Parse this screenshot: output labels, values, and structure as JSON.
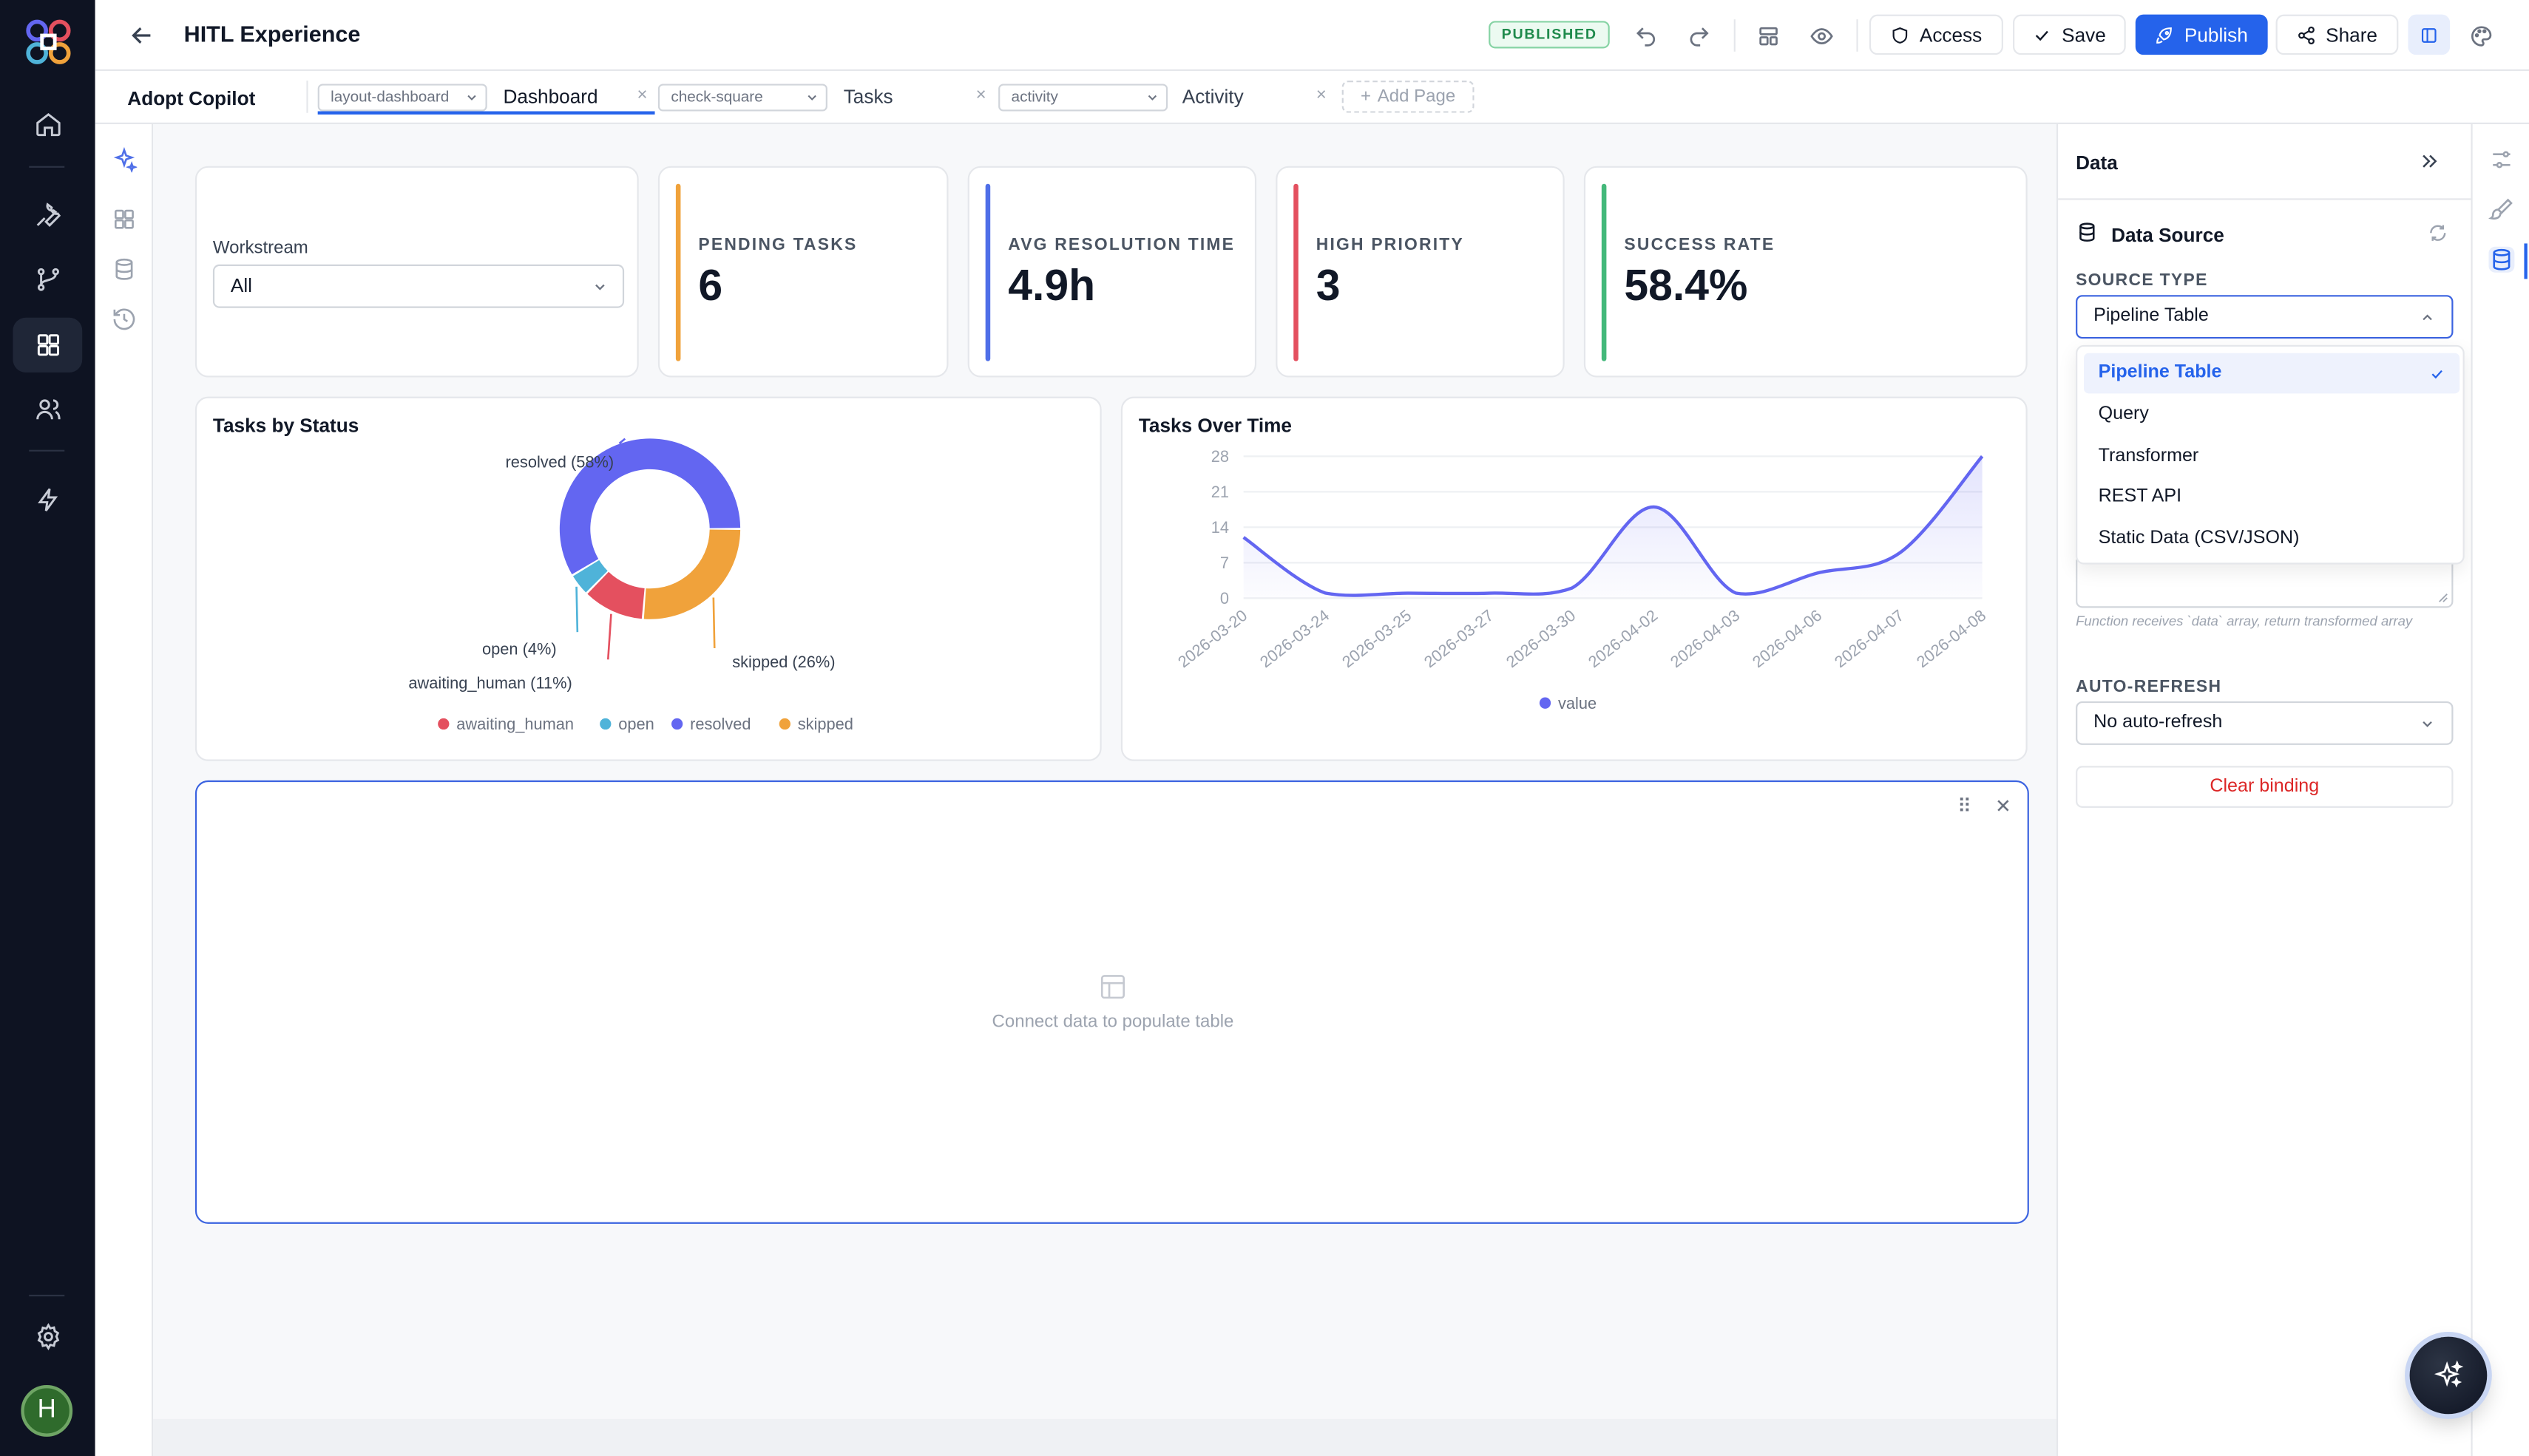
{
  "header": {
    "title": "HITL Experience",
    "status_badge": "PUBLISHED",
    "access_label": "Access",
    "save_label": "Save",
    "publish_label": "Publish",
    "share_label": "Share"
  },
  "tabstrip": {
    "app_name": "Adopt Copilot",
    "pages": [
      {
        "icon": "layout-dashboard",
        "name": "Dashboard"
      },
      {
        "icon": "check-square",
        "name": "Tasks"
      },
      {
        "icon": "activity",
        "name": "Activity"
      }
    ],
    "add_page_label": "Add Page",
    "close_glyph": "×"
  },
  "workstream": {
    "label": "Workstream",
    "value": "All"
  },
  "stats": [
    {
      "label": "PENDING TASKS",
      "value": "6",
      "color": "#f0a23b"
    },
    {
      "label": "AVG RESOLUTION TIME",
      "value": "4.9h",
      "color": "#4f6fe8"
    },
    {
      "label": "HIGH PRIORITY",
      "value": "3",
      "color": "#e4505f"
    },
    {
      "label": "SUCCESS RATE",
      "value": "58.4%",
      "color": "#43b87a"
    }
  ],
  "donut_card": {
    "title": "Tasks by Status"
  },
  "line_card": {
    "title": "Tasks Over Time"
  },
  "chart_data": [
    {
      "type": "pie",
      "title": "Tasks by Status",
      "donut": true,
      "slices": [
        {
          "name": "resolved",
          "value": 58,
          "label": "resolved (58%)",
          "color": "#6366f1"
        },
        {
          "name": "skipped",
          "value": 26,
          "label": "skipped (26%)",
          "color": "#f0a23b"
        },
        {
          "name": "awaiting_human",
          "value": 11,
          "label": "awaiting_human (11%)",
          "color": "#e4505f"
        },
        {
          "name": "open",
          "value": 4,
          "label": "open (4%)",
          "color": "#4fb3d9"
        }
      ],
      "legend": [
        "awaiting_human",
        "open",
        "resolved",
        "skipped"
      ],
      "legend_placement": "bottom"
    },
    {
      "type": "area",
      "title": "Tasks Over Time",
      "x": [
        "2026-03-20",
        "2026-03-24",
        "2026-03-25",
        "2026-03-27",
        "2026-03-30",
        "2026-04-02",
        "2026-04-03",
        "2026-04-06",
        "2026-04-07",
        "2026-04-08"
      ],
      "series": [
        {
          "name": "value",
          "values": [
            12,
            1,
            1,
            1,
            2,
            18,
            1,
            5,
            9,
            28
          ],
          "color": "#6366f1"
        }
      ],
      "yticks": [
        0,
        7,
        14,
        21,
        28
      ],
      "ylim": [
        0,
        28
      ],
      "grid": true,
      "legend_placement": "bottom"
    }
  ],
  "table_card": {
    "empty_text": "Connect data to populate table",
    "drag_glyph": "⠿",
    "close_glyph": "✕"
  },
  "right_panel": {
    "title": "Data",
    "data_source_title": "Data Source",
    "source_type_label": "SOURCE TYPE",
    "source_type_value": "Pipeline Table",
    "source_options": [
      "Pipeline Table",
      "Query",
      "Transformer",
      "REST API",
      "Static Data (CSV/JSON)"
    ],
    "transform_hint": "Function receives `data` array, return transformed array",
    "auto_refresh_label": "AUTO-REFRESH",
    "auto_refresh_value": "No auto-refresh",
    "clear_binding_label": "Clear binding"
  },
  "user": {
    "avatar_initial": "H"
  }
}
